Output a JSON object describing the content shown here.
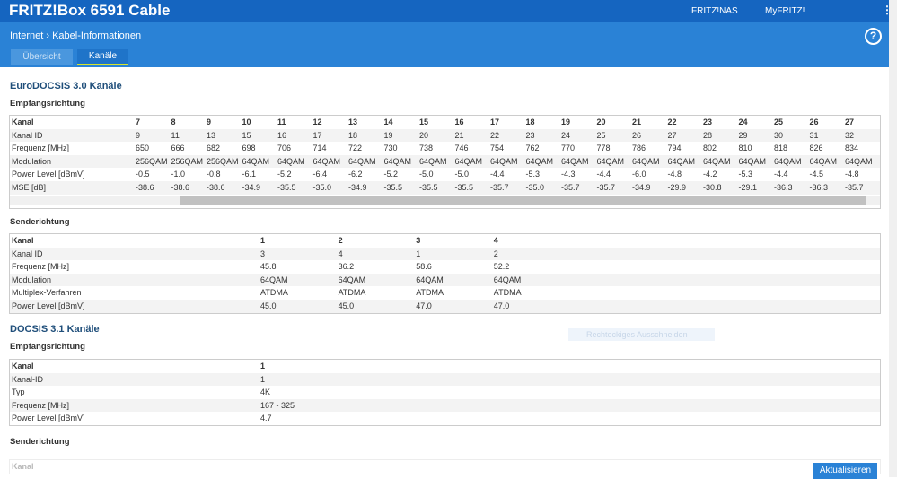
{
  "header": {
    "title": "FRITZ!Box 6591 Cable",
    "links": [
      "FRITZ!NAS",
      "MyFRITZ!"
    ],
    "help": "?"
  },
  "breadcrumb": [
    "Internet",
    "Kabel-Informationen"
  ],
  "tabs": [
    "Übersicht",
    "Kanäle"
  ],
  "sections": [
    {
      "title": "EuroDOCSIS 3.0 Kanäle",
      "blocks": [
        {
          "title": "Empfangsrichtung",
          "table": {
            "rows": [
              {
                "label": "Kanal",
                "cells": [
                  "7",
                  "8",
                  "9",
                  "10",
                  "11",
                  "12",
                  "13",
                  "14",
                  "15",
                  "16",
                  "17",
                  "18",
                  "19",
                  "20",
                  "21",
                  "22",
                  "23",
                  "24",
                  "25",
                  "26",
                  "27"
                ]
              },
              {
                "label": "Kanal ID",
                "cells": [
                  "9",
                  "11",
                  "13",
                  "15",
                  "16",
                  "17",
                  "18",
                  "19",
                  "20",
                  "21",
                  "22",
                  "23",
                  "24",
                  "25",
                  "26",
                  "27",
                  "28",
                  "29",
                  "30",
                  "31",
                  "32"
                ]
              },
              {
                "label": "Frequenz [MHz]",
                "cells": [
                  "650",
                  "666",
                  "682",
                  "698",
                  "706",
                  "714",
                  "722",
                  "730",
                  "738",
                  "746",
                  "754",
                  "762",
                  "770",
                  "778",
                  "786",
                  "794",
                  "802",
                  "810",
                  "818",
                  "826",
                  "834"
                ]
              },
              {
                "label": "Modulation",
                "cells": [
                  "256QAM",
                  "256QAM",
                  "256QAM",
                  "64QAM",
                  "64QAM",
                  "64QAM",
                  "64QAM",
                  "64QAM",
                  "64QAM",
                  "64QAM",
                  "64QAM",
                  "64QAM",
                  "64QAM",
                  "64QAM",
                  "64QAM",
                  "64QAM",
                  "64QAM",
                  "64QAM",
                  "64QAM",
                  "64QAM",
                  "64QAM"
                ]
              },
              {
                "label": "Power Level [dBmV]",
                "cells": [
                  "-0.5",
                  "-1.0",
                  "-0.8",
                  "-6.1",
                  "-5.2",
                  "-6.4",
                  "-6.2",
                  "-5.2",
                  "-5.0",
                  "-5.0",
                  "-4.4",
                  "-5.3",
                  "-4.3",
                  "-4.4",
                  "-6.0",
                  "-4.8",
                  "-4.2",
                  "-5.3",
                  "-4.4",
                  "-4.5",
                  "-4.8"
                ]
              },
              {
                "label": "MSE [dB]",
                "cells": [
                  "-38.6",
                  "-38.6",
                  "-38.6",
                  "-34.9",
                  "-35.5",
                  "-35.0",
                  "-34.9",
                  "-35.5",
                  "-35.5",
                  "-35.5",
                  "-35.7",
                  "-35.0",
                  "-35.7",
                  "-35.7",
                  "-34.9",
                  "-29.9",
                  "-30.8",
                  "-29.1",
                  "-36.3",
                  "-36.3",
                  "-35.7"
                ]
              }
            ]
          }
        },
        {
          "title": "Senderichtung",
          "table": {
            "rows": [
              {
                "label": "Kanal",
                "cells": [
                  "1",
                  "2",
                  "3",
                  "4"
                ]
              },
              {
                "label": "Kanal ID",
                "cells": [
                  "3",
                  "4",
                  "1",
                  "2"
                ]
              },
              {
                "label": "Frequenz [MHz]",
                "cells": [
                  "45.8",
                  "36.2",
                  "58.6",
                  "52.2"
                ]
              },
              {
                "label": "Modulation",
                "cells": [
                  "64QAM",
                  "64QAM",
                  "64QAM",
                  "64QAM"
                ]
              },
              {
                "label": "Multiplex-Verfahren",
                "cells": [
                  "ATDMA",
                  "ATDMA",
                  "ATDMA",
                  "ATDMA"
                ]
              },
              {
                "label": "Power Level [dBmV]",
                "cells": [
                  "45.0",
                  "45.0",
                  "47.0",
                  "47.0"
                ]
              }
            ]
          }
        }
      ]
    },
    {
      "title": "DOCSIS 3.1 Kanäle",
      "blocks": [
        {
          "title": "Empfangsrichtung",
          "table": {
            "rows": [
              {
                "label": "Kanal",
                "cells": [
                  "1"
                ]
              },
              {
                "label": "Kanal-ID",
                "cells": [
                  "1"
                ]
              },
              {
                "label": "Typ",
                "cells": [
                  "4K"
                ]
              },
              {
                "label": "Frequenz [MHz]",
                "cells": [
                  "167 - 325"
                ]
              },
              {
                "label": "Power Level [dBmV]",
                "cells": [
                  "4.7"
                ]
              }
            ]
          }
        },
        {
          "title": "Senderichtung",
          "table": {
            "rows": [
              {
                "label": "Kanal",
                "cells": []
              }
            ]
          }
        }
      ]
    }
  ],
  "overlay": "Rechteckiges Ausschneiden",
  "button": "Aktualisieren"
}
